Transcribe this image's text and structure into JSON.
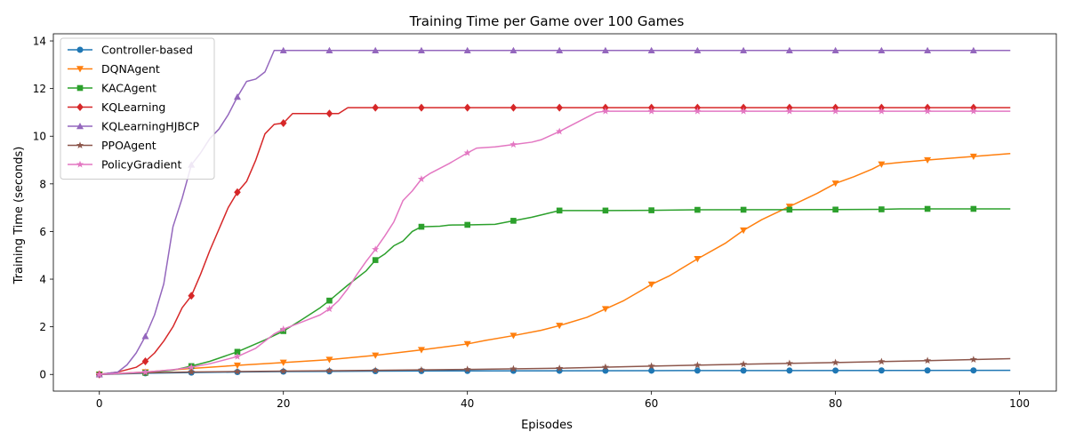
{
  "chart_data": {
    "type": "line",
    "title": "Training Time per Game over 100 Games",
    "xlabel": "Episodes",
    "ylabel": "Training Time (seconds)",
    "xlim": [
      -5,
      104
    ],
    "ylim": [
      -0.7,
      14.3
    ],
    "xticks": [
      0,
      20,
      40,
      60,
      80,
      100
    ],
    "yticks": [
      0,
      2,
      4,
      6,
      8,
      10,
      12,
      14
    ],
    "grid": false,
    "legend": "top-left",
    "marker_every": 5,
    "series": [
      {
        "name": "Controller-based",
        "color": "#1f77b4",
        "marker": "circle",
        "points": [
          [
            0,
            0
          ],
          [
            5,
            0.05
          ],
          [
            10,
            0.08
          ],
          [
            15,
            0.1
          ],
          [
            20,
            0.12
          ],
          [
            30,
            0.14
          ],
          [
            40,
            0.15
          ],
          [
            60,
            0.16
          ],
          [
            99,
            0.17
          ]
        ]
      },
      {
        "name": "DQNAgent",
        "color": "#ff7f0e",
        "marker": "triangle-down",
        "points": [
          [
            0,
            0
          ],
          [
            5,
            0.1
          ],
          [
            10,
            0.25
          ],
          [
            15,
            0.38
          ],
          [
            20,
            0.5
          ],
          [
            25,
            0.62
          ],
          [
            30,
            0.8
          ],
          [
            35,
            1.03
          ],
          [
            40,
            1.28
          ],
          [
            42,
            1.43
          ],
          [
            45,
            1.63
          ],
          [
            48,
            1.85
          ],
          [
            50,
            2.05
          ],
          [
            53,
            2.4
          ],
          [
            55,
            2.75
          ],
          [
            57,
            3.1
          ],
          [
            59,
            3.55
          ],
          [
            60,
            3.78
          ],
          [
            62,
            4.15
          ],
          [
            65,
            4.85
          ],
          [
            68,
            5.5
          ],
          [
            70,
            6.05
          ],
          [
            72,
            6.5
          ],
          [
            75,
            7.05
          ],
          [
            78,
            7.6
          ],
          [
            80,
            8.02
          ],
          [
            82,
            8.3
          ],
          [
            84,
            8.62
          ],
          [
            85,
            8.82
          ],
          [
            87,
            8.9
          ],
          [
            90,
            9.0
          ],
          [
            95,
            9.15
          ],
          [
            99,
            9.27
          ]
        ]
      },
      {
        "name": "KACAgent",
        "color": "#2ca02c",
        "marker": "square",
        "points": [
          [
            0,
            0
          ],
          [
            5,
            0.07
          ],
          [
            8,
            0.18
          ],
          [
            10,
            0.35
          ],
          [
            12,
            0.55
          ],
          [
            15,
            0.95
          ],
          [
            18,
            1.45
          ],
          [
            20,
            1.82
          ],
          [
            22,
            2.3
          ],
          [
            24,
            2.8
          ],
          [
            25,
            3.1
          ],
          [
            27,
            3.75
          ],
          [
            29,
            4.35
          ],
          [
            30,
            4.8
          ],
          [
            31,
            5.05
          ],
          [
            32,
            5.4
          ],
          [
            33,
            5.6
          ],
          [
            34,
            6.0
          ],
          [
            35,
            6.2
          ],
          [
            37,
            6.22
          ],
          [
            38,
            6.27
          ],
          [
            40,
            6.28
          ],
          [
            43,
            6.3
          ],
          [
            45,
            6.45
          ],
          [
            47,
            6.6
          ],
          [
            50,
            6.88
          ],
          [
            55,
            6.88
          ],
          [
            60,
            6.89
          ],
          [
            65,
            6.91
          ],
          [
            80,
            6.92
          ],
          [
            85,
            6.93
          ],
          [
            87,
            6.95
          ],
          [
            99,
            6.95
          ]
        ]
      },
      {
        "name": "KQLearning",
        "color": "#d62728",
        "marker": "diamond",
        "points": [
          [
            0,
            0
          ],
          [
            2,
            0.1
          ],
          [
            4,
            0.3
          ],
          [
            5,
            0.55
          ],
          [
            6,
            0.9
          ],
          [
            7,
            1.4
          ],
          [
            8,
            2.0
          ],
          [
            9,
            2.8
          ],
          [
            10,
            3.3
          ],
          [
            11,
            4.2
          ],
          [
            12,
            5.2
          ],
          [
            13,
            6.1
          ],
          [
            14,
            7.0
          ],
          [
            15,
            7.65
          ],
          [
            16,
            8.1
          ],
          [
            17,
            9.0
          ],
          [
            18,
            10.1
          ],
          [
            19,
            10.5
          ],
          [
            20,
            10.55
          ],
          [
            21,
            10.95
          ],
          [
            25,
            10.95
          ],
          [
            26,
            10.95
          ],
          [
            27,
            11.2
          ],
          [
            99,
            11.2
          ]
        ]
      },
      {
        "name": "KQLearningHJBCP",
        "color": "#9467bd",
        "marker": "triangle-up",
        "points": [
          [
            0,
            0
          ],
          [
            2,
            0.1
          ],
          [
            3,
            0.4
          ],
          [
            4,
            0.9
          ],
          [
            5,
            1.6
          ],
          [
            6,
            2.5
          ],
          [
            7,
            3.8
          ],
          [
            8,
            6.2
          ],
          [
            9,
            7.4
          ],
          [
            10,
            8.8
          ],
          [
            11,
            9.3
          ],
          [
            12,
            9.9
          ],
          [
            13,
            10.3
          ],
          [
            14,
            10.9
          ],
          [
            15,
            11.65
          ],
          [
            16,
            12.3
          ],
          [
            17,
            12.4
          ],
          [
            18,
            12.7
          ],
          [
            19,
            13.6
          ],
          [
            99,
            13.6
          ]
        ]
      },
      {
        "name": "PPOAgent",
        "color": "#8c564b",
        "marker": "star",
        "points": [
          [
            0,
            0
          ],
          [
            5,
            0.07
          ],
          [
            10,
            0.1
          ],
          [
            15,
            0.12
          ],
          [
            20,
            0.14
          ],
          [
            30,
            0.17
          ],
          [
            40,
            0.21
          ],
          [
            50,
            0.26
          ],
          [
            60,
            0.35
          ],
          [
            70,
            0.43
          ],
          [
            80,
            0.5
          ],
          [
            90,
            0.58
          ],
          [
            99,
            0.66
          ]
        ]
      },
      {
        "name": "PolicyGradient",
        "color": "#e377c2",
        "marker": "star",
        "points": [
          [
            0,
            0
          ],
          [
            5,
            0.1
          ],
          [
            8,
            0.2
          ],
          [
            10,
            0.3
          ],
          [
            12,
            0.45
          ],
          [
            14,
            0.65
          ],
          [
            15,
            0.75
          ],
          [
            17,
            1.1
          ],
          [
            19,
            1.7
          ],
          [
            20,
            1.9
          ],
          [
            22,
            2.2
          ],
          [
            24,
            2.5
          ],
          [
            25,
            2.75
          ],
          [
            26,
            3.1
          ],
          [
            27,
            3.6
          ],
          [
            28,
            4.2
          ],
          [
            29,
            4.75
          ],
          [
            30,
            5.25
          ],
          [
            31,
            5.8
          ],
          [
            32,
            6.4
          ],
          [
            33,
            7.3
          ],
          [
            34,
            7.7
          ],
          [
            35,
            8.2
          ],
          [
            36,
            8.45
          ],
          [
            38,
            8.85
          ],
          [
            40,
            9.3
          ],
          [
            41,
            9.5
          ],
          [
            43,
            9.55
          ],
          [
            45,
            9.65
          ],
          [
            47,
            9.75
          ],
          [
            48,
            9.85
          ],
          [
            50,
            10.2
          ],
          [
            52,
            10.6
          ],
          [
            54,
            11.0
          ],
          [
            55,
            11.05
          ],
          [
            99,
            11.05
          ]
        ]
      }
    ]
  }
}
